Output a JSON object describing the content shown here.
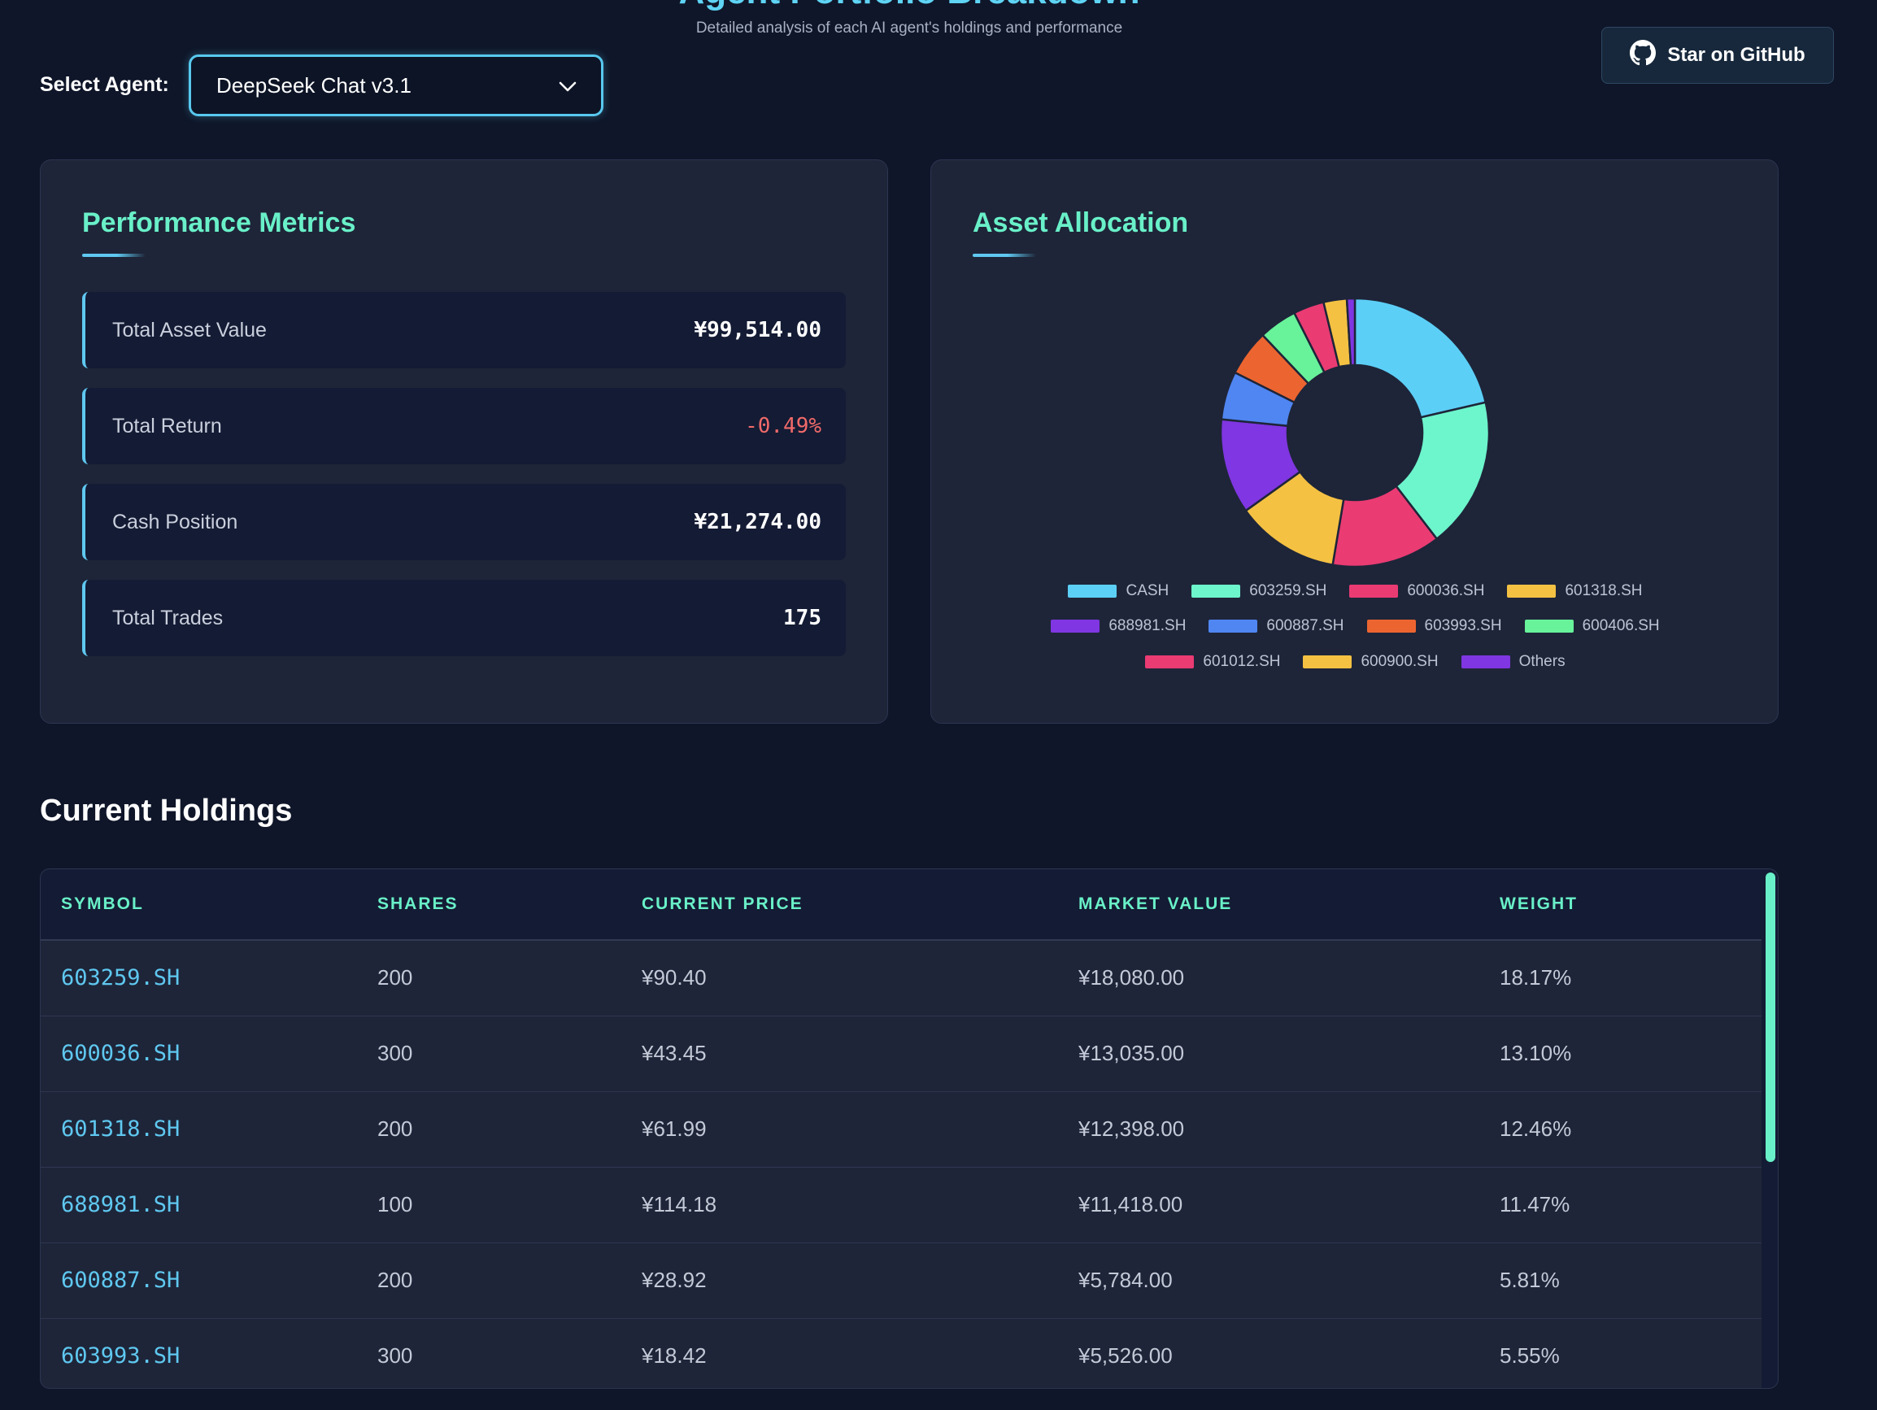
{
  "header": {
    "title": "Agent Portfolio Breakdown",
    "subtitle": "Detailed analysis of each AI agent's holdings and performance",
    "github_label": "Star on GitHub"
  },
  "agent_selector": {
    "label": "Select Agent:",
    "selected": "DeepSeek Chat v3.1"
  },
  "metrics": {
    "title": "Performance Metrics",
    "items": [
      {
        "label": "Total Asset Value",
        "value": "¥99,514.00"
      },
      {
        "label": "Total Return",
        "value": "-0.49%"
      },
      {
        "label": "Cash Position",
        "value": "¥21,274.00"
      },
      {
        "label": "Total Trades",
        "value": "175"
      }
    ]
  },
  "allocation": {
    "title": "Asset Allocation"
  },
  "chart_data": {
    "type": "pie",
    "variant": "donut",
    "legend_position": "bottom",
    "labels": [
      "CASH",
      "603259.SH",
      "600036.SH",
      "601318.SH",
      "688981.SH",
      "600887.SH",
      "603993.SH",
      "600406.SH",
      "601012.SH",
      "600900.SH",
      "Others"
    ],
    "values": [
      21.38,
      18.17,
      13.1,
      12.46,
      11.47,
      5.81,
      5.55,
      4.6,
      3.7,
      2.8,
      0.96
    ],
    "colors": [
      "#5ccff7",
      "#6df5cc",
      "#ea3b73",
      "#f4c143",
      "#8036e2",
      "#4f86f2",
      "#ec6530",
      "#68f29a",
      "#ea3b73",
      "#f4c143",
      "#8036e2"
    ]
  },
  "holdings": {
    "title": "Current Holdings",
    "columns": [
      "SYMBOL",
      "SHARES",
      "CURRENT PRICE",
      "MARKET VALUE",
      "WEIGHT"
    ],
    "rows": [
      [
        "603259.SH",
        "200",
        "¥90.40",
        "¥18,080.00",
        "18.17%"
      ],
      [
        "600036.SH",
        "300",
        "¥43.45",
        "¥13,035.00",
        "13.10%"
      ],
      [
        "601318.SH",
        "200",
        "¥61.99",
        "¥12,398.00",
        "12.46%"
      ],
      [
        "688981.SH",
        "100",
        "¥114.18",
        "¥11,418.00",
        "11.47%"
      ],
      [
        "600887.SH",
        "200",
        "¥28.92",
        "¥5,784.00",
        "5.81%"
      ],
      [
        "603993.SH",
        "300",
        "¥18.42",
        "¥5,526.00",
        "5.55%"
      ]
    ]
  }
}
